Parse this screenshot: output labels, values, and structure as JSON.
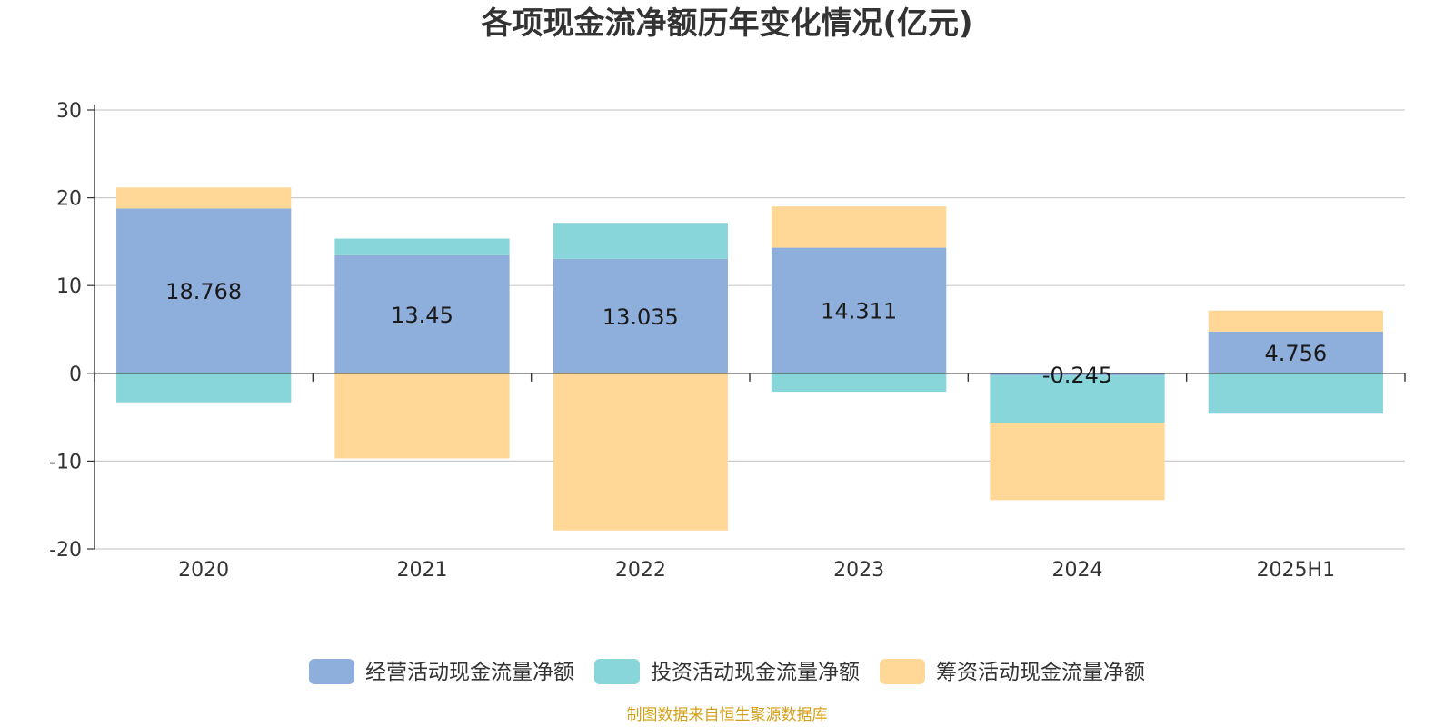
{
  "chart_data": {
    "type": "bar",
    "stacked": true,
    "title": "各项现金流净额历年变化情况(亿元)",
    "categories": [
      "2020",
      "2021",
      "2022",
      "2023",
      "2024",
      "2025H1"
    ],
    "series": [
      {
        "name": "经营活动现金流量净额",
        "color": "#8eaedb",
        "values": [
          18.768,
          13.45,
          13.035,
          14.311,
          -0.245,
          4.756
        ],
        "labels": [
          "18.768",
          "13.45",
          "13.035",
          "14.311",
          "-0.245",
          "4.756"
        ]
      },
      {
        "name": "投资活动现金流量净额",
        "color": "#88d6d9",
        "values": [
          -3.3,
          1.9,
          4.1,
          -2.1,
          -5.4,
          -4.6
        ]
      },
      {
        "name": "筹资活动现金流量净额",
        "color": "#ffd898",
        "values": [
          2.4,
          -9.7,
          -17.9,
          4.7,
          -8.8,
          2.4
        ]
      }
    ],
    "yticks": [
      "30",
      "20",
      "10",
      "0",
      "-10",
      "-20"
    ],
    "ylim": [
      -20,
      30
    ],
    "grid": true,
    "legend_position": "bottom",
    "xlabel": "",
    "ylabel": ""
  },
  "source_note": "制图数据来自恒生聚源数据库"
}
